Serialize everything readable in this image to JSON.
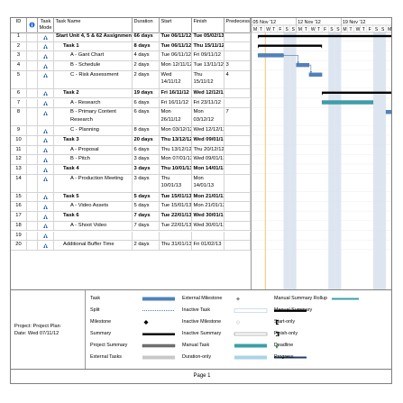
{
  "columns": {
    "id": "ID",
    "info": "i",
    "mode": "Task Mode",
    "name": "Task Name",
    "duration": "Duration",
    "start": "Start",
    "finish": "Finish",
    "predecessors": "Predecessors"
  },
  "timescale": {
    "weeks": [
      "05 Nov '12",
      "12 Nov '12",
      "19 Nov '12"
    ],
    "days": [
      "M",
      "T",
      "W",
      "T",
      "F",
      "S",
      "S",
      "M",
      "T",
      "W",
      "T",
      "F",
      "S",
      "S",
      "M",
      "T",
      "W",
      "T",
      "F",
      "S",
      "S",
      "M"
    ]
  },
  "tasks": [
    {
      "id": "1",
      "name": "Start Unit 4, 5 & 62 Assignment 2",
      "duration": "66 days",
      "start": "Tue 06/11/12",
      "finish": "Tue 05/02/13",
      "pred": "",
      "bold": true,
      "indent": 0
    },
    {
      "id": "2",
      "name": "Task 1",
      "duration": "8 days",
      "start": "Tue 06/11/12",
      "finish": "Thu 15/11/12",
      "pred": "",
      "bold": true,
      "indent": 1
    },
    {
      "id": "3",
      "name": "A - Gant Chart",
      "duration": "4 days",
      "start": "Tue 06/11/12",
      "finish": "Fri 09/11/12",
      "pred": "",
      "bold": false,
      "indent": 2
    },
    {
      "id": "4",
      "name": "B - Schedule",
      "duration": "2 days",
      "start": "Mon 12/11/12",
      "finish": "Tue 13/11/12",
      "pred": "3",
      "bold": false,
      "indent": 2
    },
    {
      "id": "5",
      "name": "C - Risk Assessment",
      "duration": "2 days",
      "start": "Wed 14/11/12",
      "finish": "Thu 15/11/12",
      "pred": "4",
      "bold": false,
      "indent": 2
    },
    {
      "id": "6",
      "name": "Task 2",
      "duration": "19 days",
      "start": "Fri 16/11/12",
      "finish": "Wed 12/12/12",
      "pred": "",
      "bold": true,
      "indent": 1
    },
    {
      "id": "7",
      "name": "A - Research",
      "duration": "6 days",
      "start": "Fri 16/11/12",
      "finish": "Fri 23/11/12",
      "pred": "",
      "bold": false,
      "indent": 2
    },
    {
      "id": "8",
      "name": "B - Primary Content Research",
      "duration": "6 days",
      "start": "Mon 26/11/12",
      "finish": "Mon 03/12/12",
      "pred": "7",
      "bold": false,
      "indent": 2
    },
    {
      "id": "9",
      "name": "C - Planning",
      "duration": "8 days",
      "start": "Mon 03/12/12",
      "finish": "Wed 12/12/12",
      "pred": "",
      "bold": false,
      "indent": 2
    },
    {
      "id": "10",
      "name": "Task 3",
      "duration": "20 days",
      "start": "Thu 13/12/12",
      "finish": "Wed 09/01/13",
      "pred": "",
      "bold": true,
      "indent": 1
    },
    {
      "id": "11",
      "name": "A - Proposal",
      "duration": "6 days",
      "start": "Thu 13/12/12",
      "finish": "Thu 20/12/12",
      "pred": "",
      "bold": false,
      "indent": 2
    },
    {
      "id": "12",
      "name": "B - Pitch",
      "duration": "3 days",
      "start": "Mon 07/01/13",
      "finish": "Wed 09/01/13",
      "pred": "",
      "bold": false,
      "indent": 2
    },
    {
      "id": "13",
      "name": "Task 4",
      "duration": "3 days",
      "start": "Thu 10/01/13",
      "finish": "Mon 14/01/13",
      "pred": "",
      "bold": true,
      "indent": 1
    },
    {
      "id": "14",
      "name": "A - Production Meeting",
      "duration": "3 days",
      "start": "Thu 10/01/13",
      "finish": "Mon 14/01/13",
      "pred": "",
      "bold": false,
      "indent": 2
    },
    {
      "id": "15",
      "name": "Task 5",
      "duration": "5 days",
      "start": "Tue 15/01/13",
      "finish": "Mon 21/01/13",
      "pred": "",
      "bold": true,
      "indent": 1
    },
    {
      "id": "16",
      "name": "A - Video Assets",
      "duration": "5 days",
      "start": "Tue 15/01/13",
      "finish": "Mon 21/01/13",
      "pred": "",
      "bold": false,
      "indent": 2
    },
    {
      "id": "17",
      "name": "Task 6",
      "duration": "7 days",
      "start": "Tue 22/01/13",
      "finish": "Wed 30/01/13",
      "pred": "",
      "bold": true,
      "indent": 1
    },
    {
      "id": "18",
      "name": "A - Shoot Video",
      "duration": "7 days",
      "start": "Tue 22/01/13",
      "finish": "Wed 30/01/13",
      "pred": "",
      "bold": false,
      "indent": 2
    },
    {
      "id": "19",
      "name": "",
      "duration": "",
      "start": "",
      "finish": "",
      "pred": "",
      "bold": false,
      "indent": 0
    },
    {
      "id": "20",
      "name": "Additional Buffer Time",
      "duration": "2 days",
      "start": "Thu 31/01/13",
      "finish": "Fri 01/02/13",
      "pred": "",
      "bold": false,
      "indent": 1
    }
  ],
  "project": {
    "line1": "Project: Project Plan",
    "line2": "Date: Wed 07/11/12"
  },
  "legend": {
    "col1": [
      "Task",
      "Split",
      "Milestone",
      "Summary",
      "Project Summary",
      "External Tasks"
    ],
    "col2": [
      "External Milestone",
      "Inactive Task",
      "Inactive Milestone",
      "Inactive Summary",
      "Manual Task",
      "Duration-only"
    ],
    "col3": [
      "Manual Summary Rollup",
      "Manual Summary",
      "Start-only",
      "Finish-only",
      "Deadline",
      "Progress"
    ]
  },
  "footer": "Page 1",
  "colors": {
    "task_bar": "#4f81bd",
    "summary_bar": "#000000",
    "manual_task": "#3aa0a8",
    "weekend_shade": "#dde6f0",
    "today_line": "#f0a830"
  }
}
